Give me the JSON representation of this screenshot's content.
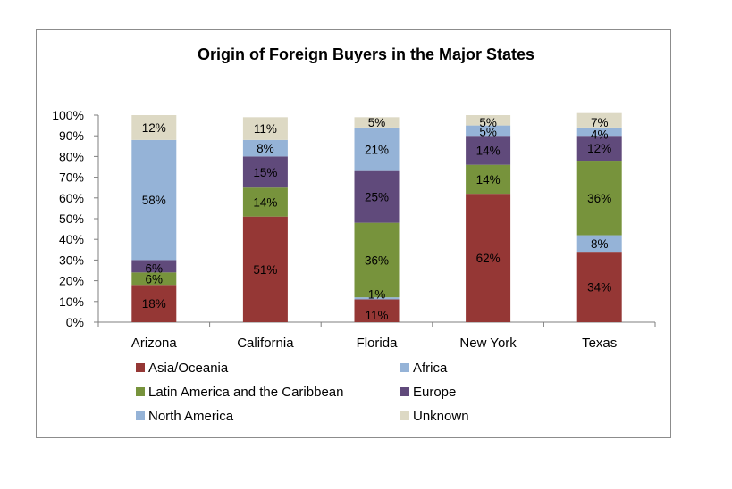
{
  "chart_data": {
    "type": "bar",
    "stacked": true,
    "title": "Origin of Foreign Buyers in the Major States",
    "xlabel": "",
    "ylabel": "",
    "ylim": [
      0,
      100
    ],
    "y_ticks": [
      "0%",
      "10%",
      "20%",
      "30%",
      "40%",
      "50%",
      "60%",
      "70%",
      "80%",
      "90%",
      "100%"
    ],
    "categories": [
      "Arizona",
      "California",
      "Florida",
      "New York",
      "Texas"
    ],
    "series": [
      {
        "name": "Asia/Oceania",
        "color": "#953735",
        "values": [
          18,
          51,
          11,
          62,
          34
        ]
      },
      {
        "name": "Africa",
        "color": "#95b3d7",
        "values": [
          0,
          0,
          1,
          0,
          8
        ]
      },
      {
        "name": "Latin America and the Caribbean",
        "color": "#77933c",
        "values": [
          6,
          14,
          36,
          14,
          36
        ]
      },
      {
        "name": "Europe",
        "color": "#604a7b",
        "values": [
          6,
          15,
          25,
          14,
          12
        ]
      },
      {
        "name": "North America",
        "color": "#95b3d7",
        "values": [
          58,
          8,
          21,
          5,
          4
        ]
      },
      {
        "name": "Unknown",
        "color": "#ddd9c4",
        "values": [
          12,
          11,
          5,
          5,
          7
        ]
      }
    ],
    "legend_position": "bottom",
    "grid": false
  }
}
